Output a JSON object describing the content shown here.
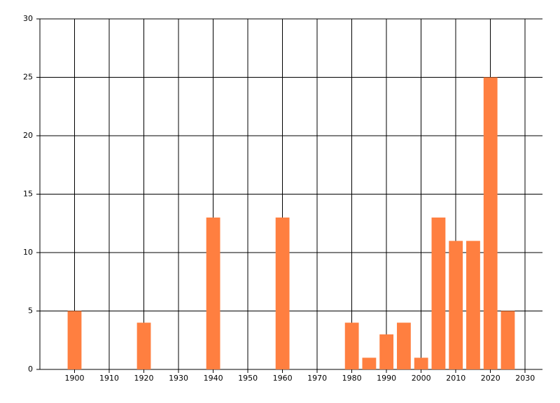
{
  "chart_data": {
    "type": "bar",
    "x": [
      1900,
      1920,
      1940,
      1960,
      1980,
      1985,
      1990,
      1995,
      2000,
      2005,
      2010,
      2015,
      2020,
      2025
    ],
    "values": [
      5,
      4,
      13,
      13,
      4,
      1,
      3,
      4,
      1,
      13,
      11,
      11,
      25,
      5
    ],
    "color": "#ff7f40",
    "xlim": [
      1890,
      2035
    ],
    "xticks": [
      1900,
      1910,
      1920,
      1930,
      1940,
      1950,
      1960,
      1970,
      1980,
      1990,
      2000,
      2010,
      2020,
      2030
    ],
    "ylim": [
      0,
      30
    ],
    "yticks": [
      0,
      5,
      10,
      15,
      20,
      25,
      30
    ],
    "grid": true
  }
}
